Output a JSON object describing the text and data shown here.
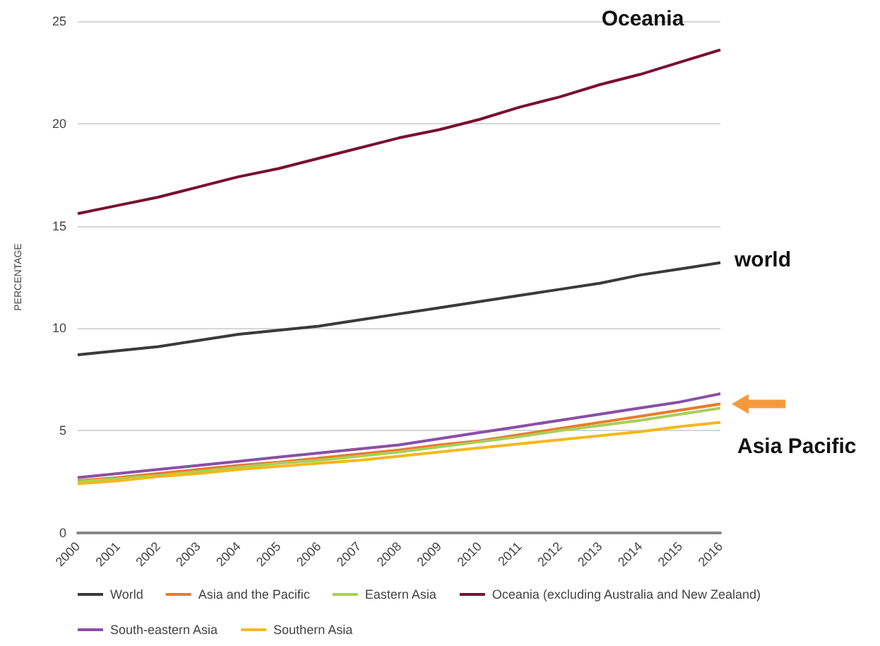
{
  "chart_data": {
    "type": "line",
    "ylabel": "PERCENTAGE",
    "categories": [
      "2000",
      "2001",
      "2002",
      "2003",
      "2004",
      "2005",
      "2006",
      "2007",
      "2008",
      "2009",
      "2010",
      "2011",
      "2012",
      "2013",
      "2014",
      "2015",
      "2016"
    ],
    "series": [
      {
        "name": "World",
        "color": "#3a3a3a",
        "values": [
          8.7,
          8.9,
          9.1,
          9.4,
          9.7,
          9.9,
          10.1,
          10.4,
          10.7,
          11.0,
          11.3,
          11.6,
          11.9,
          12.2,
          12.6,
          12.9,
          13.2
        ]
      },
      {
        "name": "Asia and the Pacific",
        "color": "#ec7a2c",
        "values": [
          2.55,
          2.7,
          2.9,
          3.1,
          3.3,
          3.45,
          3.65,
          3.85,
          4.05,
          4.3,
          4.5,
          4.8,
          5.1,
          5.4,
          5.7,
          6.0,
          6.3
        ]
      },
      {
        "name": "Eastern Asia",
        "color": "#a8cf5a",
        "values": [
          2.5,
          2.65,
          2.8,
          3.0,
          3.2,
          3.4,
          3.55,
          3.75,
          3.95,
          4.2,
          4.45,
          4.7,
          5.0,
          5.25,
          5.5,
          5.8,
          6.1
        ]
      },
      {
        "name": "Oceania (excluding Australia and New Zealand)",
        "color": "#7a1030",
        "values": [
          15.6,
          16.0,
          16.4,
          16.9,
          17.4,
          17.8,
          18.3,
          18.8,
          19.3,
          19.7,
          20.2,
          20.8,
          21.3,
          21.9,
          22.4,
          23.0,
          23.6
        ]
      },
      {
        "name": "South-eastern Asia",
        "color": "#8a4fa8",
        "values": [
          2.7,
          2.9,
          3.1,
          3.3,
          3.5,
          3.7,
          3.9,
          4.1,
          4.3,
          4.6,
          4.9,
          5.2,
          5.5,
          5.8,
          6.1,
          6.4,
          6.8
        ]
      },
      {
        "name": "Southern Asia",
        "color": "#f5b81c",
        "values": [
          2.4,
          2.55,
          2.75,
          2.9,
          3.1,
          3.25,
          3.4,
          3.55,
          3.75,
          3.95,
          4.15,
          4.35,
          4.55,
          4.75,
          4.95,
          5.2,
          5.4
        ]
      }
    ],
    "ylim": [
      0,
      25
    ],
    "yticks": [
      0,
      5,
      10,
      15,
      20,
      25
    ],
    "grid": "y",
    "legend": "bottom",
    "marker": "none",
    "line_style": "solid",
    "annotations": [
      {
        "text": "Oceania",
        "x": "2016",
        "y": 23.6
      },
      {
        "text": "world",
        "x": "2016",
        "y": 13.2
      },
      {
        "text": "Asia Pacific",
        "x": "2016",
        "y": 6.3
      }
    ]
  }
}
